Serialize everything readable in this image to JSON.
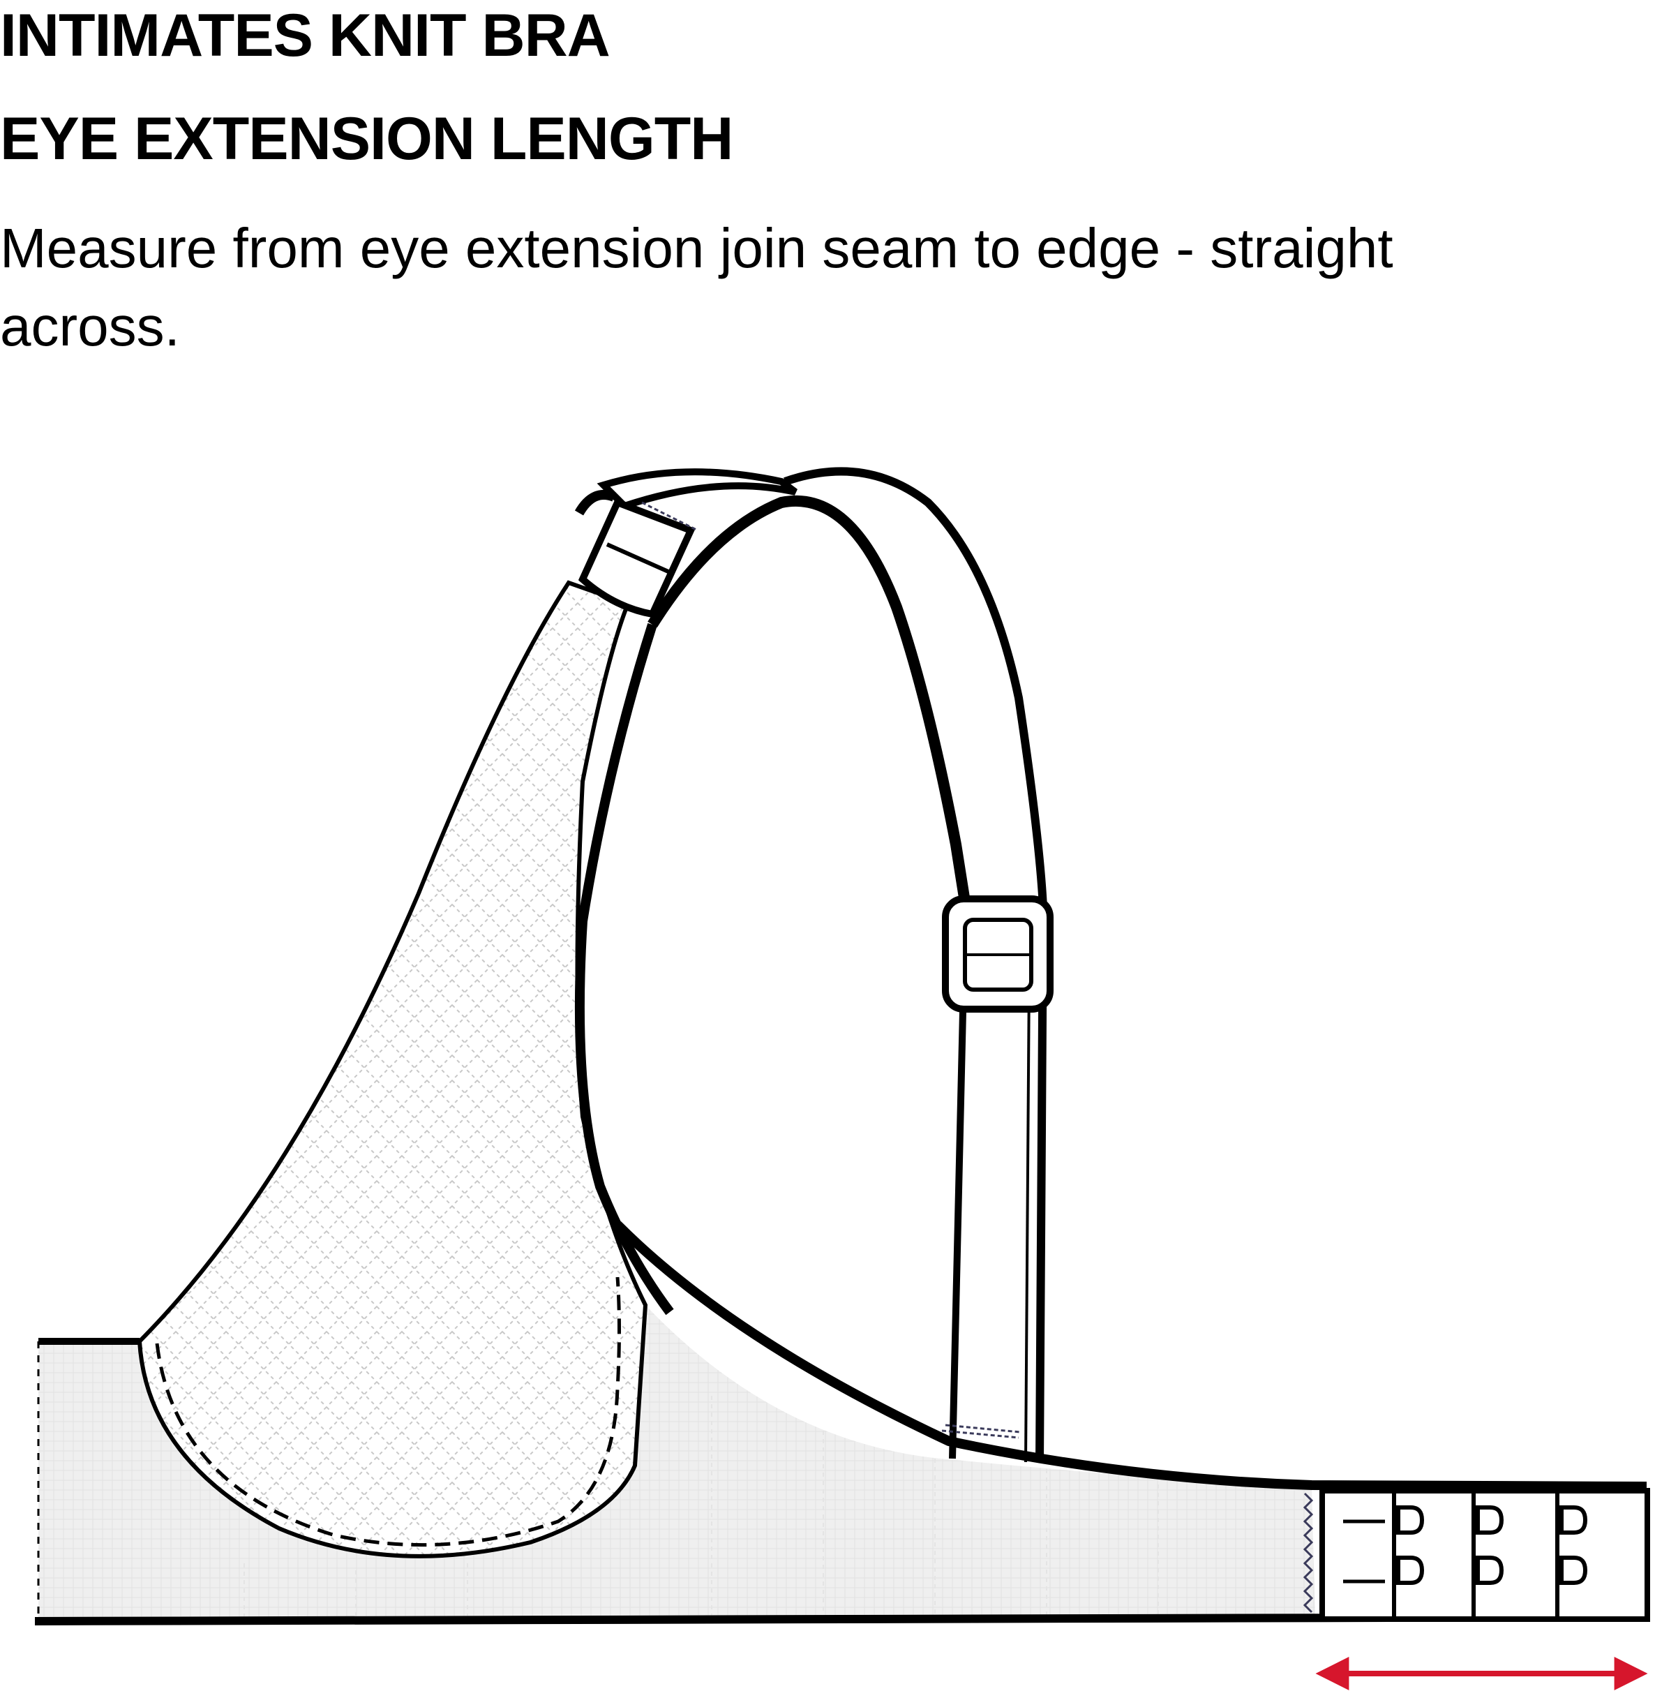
{
  "header": {
    "title": "INTIMATES KNIT BRA",
    "subtitle": "EYE EXTENSION LENGTH"
  },
  "instruction": {
    "text": "Measure from eye extension join seam to edge - straight across."
  },
  "diagram": {
    "colors": {
      "outline": "#000000",
      "band_fill": "#ededed",
      "cup_mesh": "#d9d9d9",
      "stitch": "#3a3a5a",
      "measure_arrow": "#d6162c"
    }
  }
}
